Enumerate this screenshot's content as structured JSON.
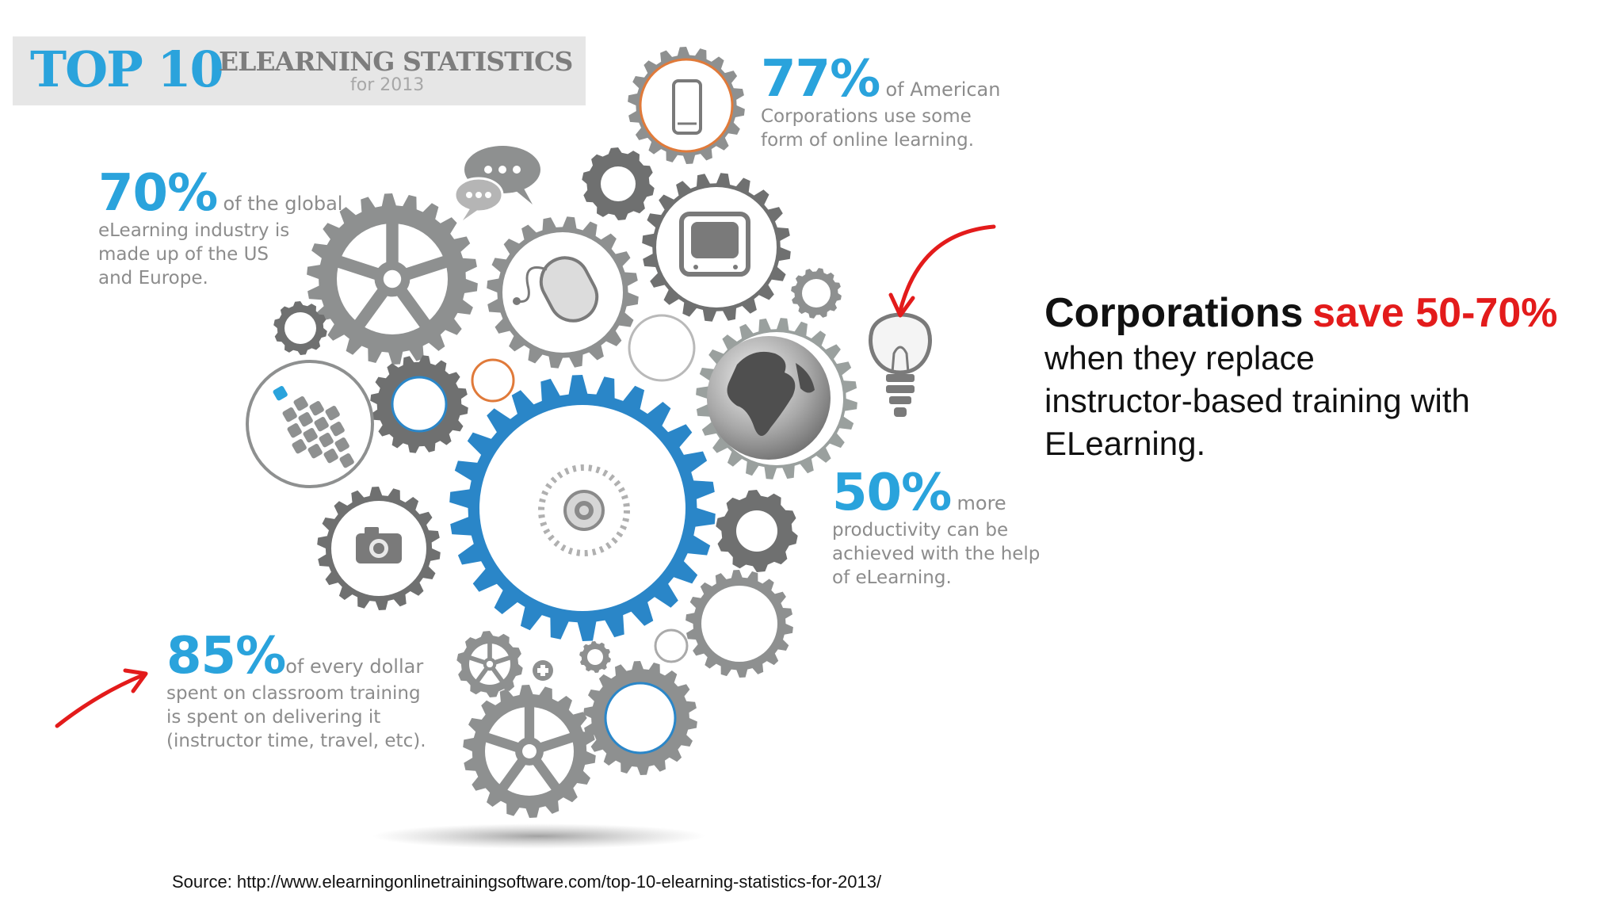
{
  "banner": {
    "top": "TOP 10",
    "title": "ELEARNING STATISTICS",
    "year": "for 2013"
  },
  "stats": [
    {
      "value": "77%",
      "after": "of American",
      "lines": [
        "Corporations use some",
        "form of online learning."
      ]
    },
    {
      "value": "70%",
      "after": "of the global",
      "lines": [
        "eLearning industry is",
        "made up of the US",
        "and Europe."
      ]
    },
    {
      "value": "50%",
      "after": "more",
      "lines": [
        "productivity can be",
        "achieved with the help",
        "of eLearning."
      ]
    },
    {
      "value": "85%",
      "after": "of every dollar",
      "lines": [
        "spent on classroom training",
        "is spent on delivering it",
        "(instructor time, travel, etc)."
      ]
    }
  ],
  "headline": {
    "part1": "Corporations",
    "part2": "save 50-70%",
    "lines": [
      "when they replace",
      "instructor-based training with",
      "ELearning."
    ]
  },
  "source": "Source: http://www.elearningonlinetrainingsoftware.com/top-10-elearning-statistics-for-2013/",
  "colors": {
    "accent": "#2aa3dc",
    "gear": "#8e9090",
    "highlight": "#e31b1b",
    "orange": "#e07a3a"
  },
  "icons": [
    "phone-icon",
    "chat-bubbles-icon",
    "computer-mouse-icon",
    "tv-icon",
    "globe-icon",
    "lightbulb-icon",
    "keypad-icon",
    "camera-icon",
    "disc-icon",
    "plus-icon",
    "arrow-icon"
  ]
}
